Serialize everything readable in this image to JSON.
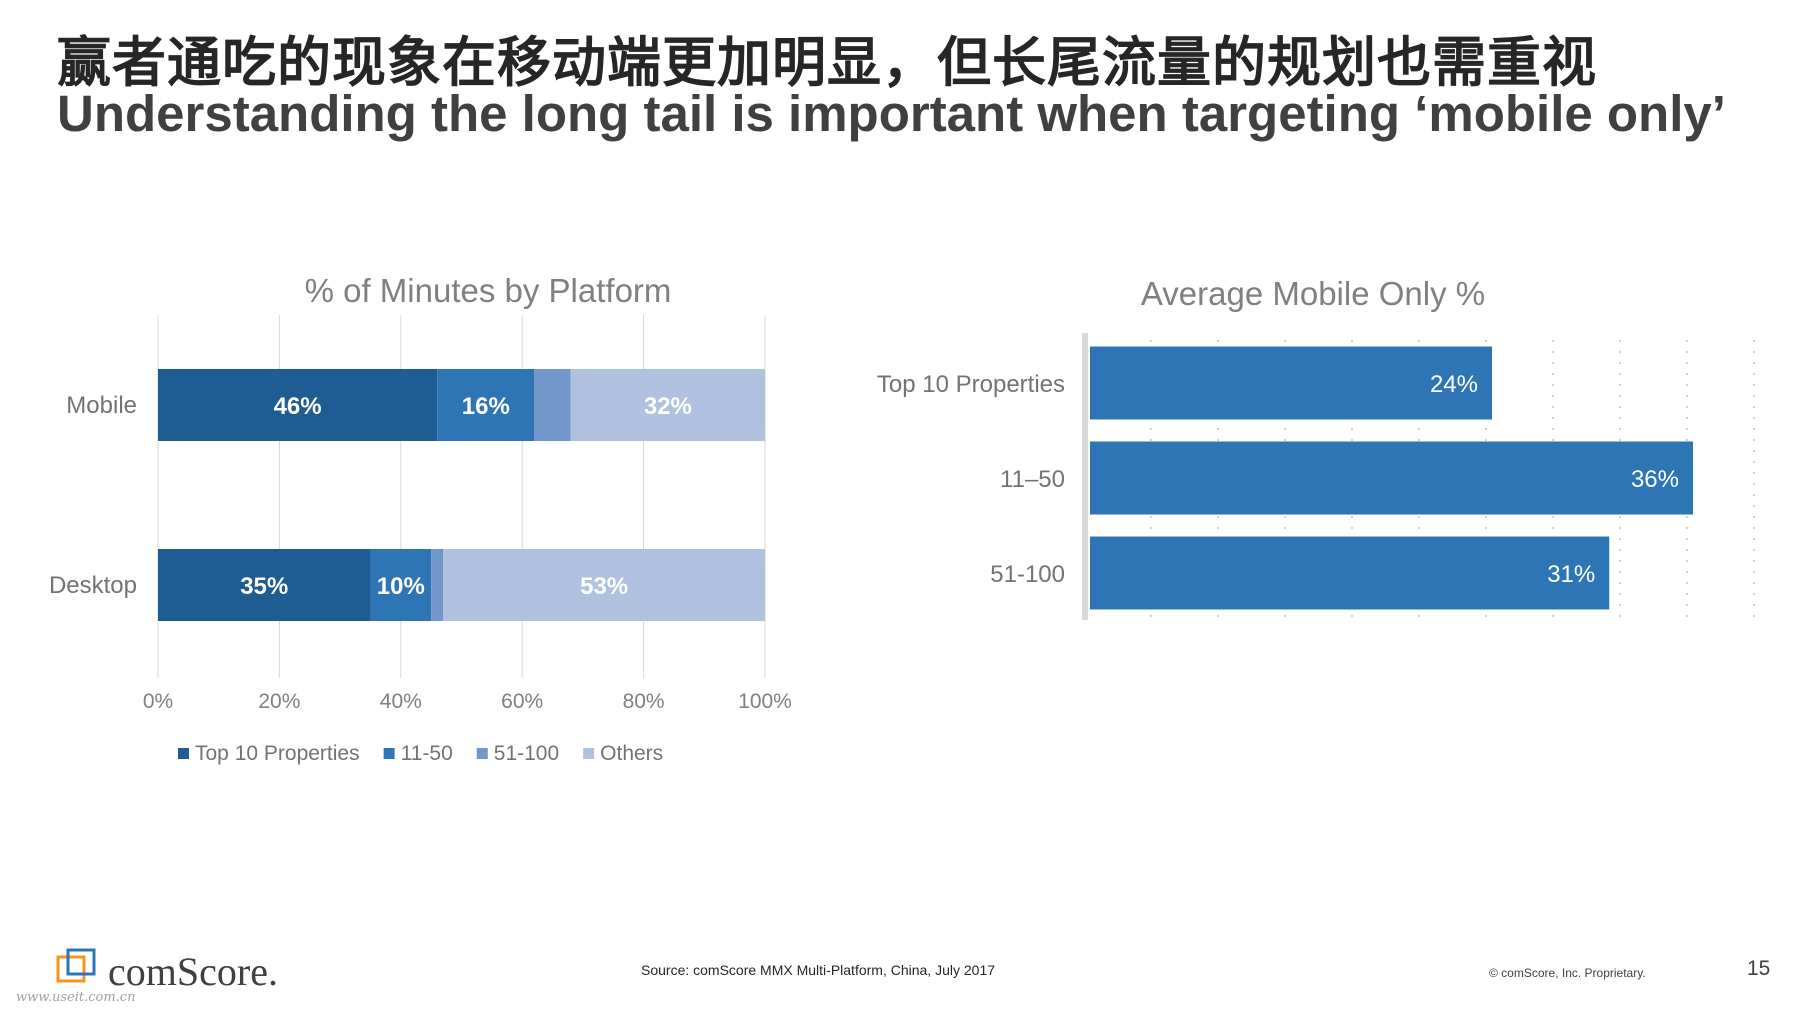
{
  "slide": {
    "title_cn": "赢者通吃的现象在移动端更加明显，但长尾流量的规划也需重视",
    "title_en": "Understanding the long tail is important when targeting ‘mobile only’",
    "source": "Source: comScore MMX Multi-Platform, China, July 2017",
    "copyright": "© comScore, Inc. Proprietary.",
    "page_number": "15",
    "logo_text": "comScore.",
    "watermark": "www.useit.com.cn"
  },
  "chart_data": [
    {
      "type": "bar",
      "orientation": "horizontal",
      "stacked": true,
      "title": "% of Minutes by Platform",
      "categories": [
        "Mobile",
        "Desktop"
      ],
      "series": [
        {
          "name": "Top 10 Properties",
          "values": [
            46,
            35
          ],
          "labels": [
            "46%",
            "35%"
          ],
          "color": "#1f5c93"
        },
        {
          "name": "11-50",
          "values": [
            16,
            10
          ],
          "labels": [
            "16%",
            "10%"
          ],
          "color": "#2e75b6"
        },
        {
          "name": "51-100",
          "values": [
            6,
            2
          ],
          "labels": [
            "",
            ""
          ],
          "color": "#7297ca"
        },
        {
          "name": "Others",
          "values": [
            32,
            53
          ],
          "labels": [
            "32%",
            "53%"
          ],
          "color": "#b0c1df"
        }
      ],
      "xlim": [
        0,
        100
      ],
      "x_ticks": [
        "0%",
        "20%",
        "40%",
        "60%",
        "80%",
        "100%"
      ],
      "grid": true,
      "legend": "bottom"
    },
    {
      "type": "bar",
      "orientation": "horizontal",
      "title": "Average Mobile Only %",
      "categories": [
        "Top 10 Properties",
        "11–50",
        "51-100"
      ],
      "values": [
        24,
        36,
        31
      ],
      "labels": [
        "24%",
        "36%",
        "31%"
      ],
      "color": "#2e75b6",
      "xlim": [
        0,
        40
      ],
      "grid": "dotted",
      "legend": "none"
    }
  ]
}
